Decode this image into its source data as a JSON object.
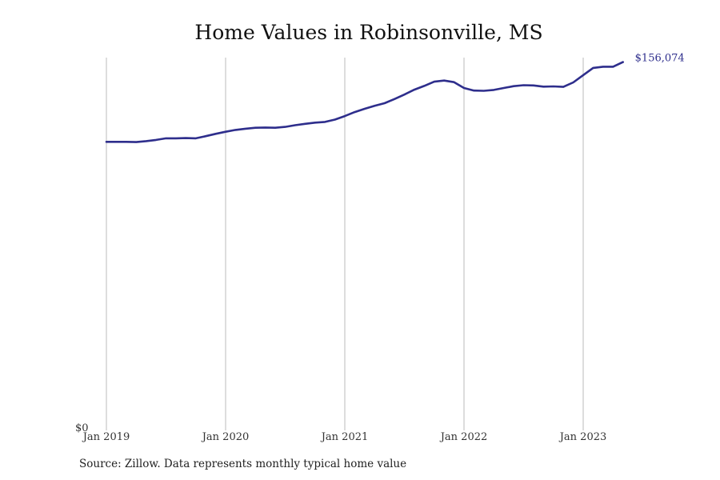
{
  "chart_data": {
    "type": "line",
    "title": "Home Values in Robinsonville, MS",
    "xlabel": "",
    "ylabel": "",
    "x_tick_labels": [
      "Jan 2019",
      "Jan 2020",
      "Jan 2021",
      "Jan 2022",
      "Jan 2023"
    ],
    "y_tick_labels": [
      "$0"
    ],
    "ylim": [
      0,
      158000
    ],
    "grid": "vertical",
    "end_label": "$156,074",
    "colors": {
      "line": "#2e2e8c",
      "grid": "#bbbbbb",
      "end_label": "#2e2e8c"
    },
    "series": [
      {
        "x": [
          "2019-01",
          "2019-02",
          "2019-03",
          "2019-04",
          "2019-05",
          "2019-06",
          "2019-07",
          "2019-08",
          "2019-09",
          "2019-10",
          "2019-11",
          "2019-12",
          "2020-01",
          "2020-02",
          "2020-03",
          "2020-04",
          "2020-05",
          "2020-06",
          "2020-07",
          "2020-08",
          "2020-09",
          "2020-10",
          "2020-11",
          "2020-12",
          "2021-01",
          "2021-02",
          "2021-03",
          "2021-04",
          "2021-05",
          "2021-06",
          "2021-07",
          "2021-08",
          "2021-09",
          "2021-10",
          "2021-11",
          "2021-12",
          "2022-01",
          "2022-02",
          "2022-03",
          "2022-04",
          "2022-05",
          "2022-06",
          "2022-07",
          "2022-08",
          "2022-09",
          "2022-10",
          "2022-11",
          "2022-12",
          "2023-01",
          "2023-02",
          "2023-03",
          "2023-04",
          "2023-05"
        ],
        "values": [
          122000,
          122000,
          122000,
          121900,
          122300,
          122800,
          123500,
          123500,
          123600,
          123500,
          124400,
          125400,
          126300,
          127100,
          127600,
          128000,
          128100,
          128000,
          128400,
          129100,
          129700,
          130200,
          130500,
          131500,
          133000,
          134700,
          136100,
          137400,
          138500,
          140300,
          142200,
          144300,
          145900,
          147700,
          148200,
          147500,
          145000,
          143900,
          143800,
          144200,
          145000,
          145800,
          146200,
          146100,
          145600,
          145700,
          145500,
          147400,
          150500,
          153600,
          154100,
          154100,
          156074
        ]
      }
    ]
  },
  "source": "Source: Zillow. Data represents monthly typical home value"
}
